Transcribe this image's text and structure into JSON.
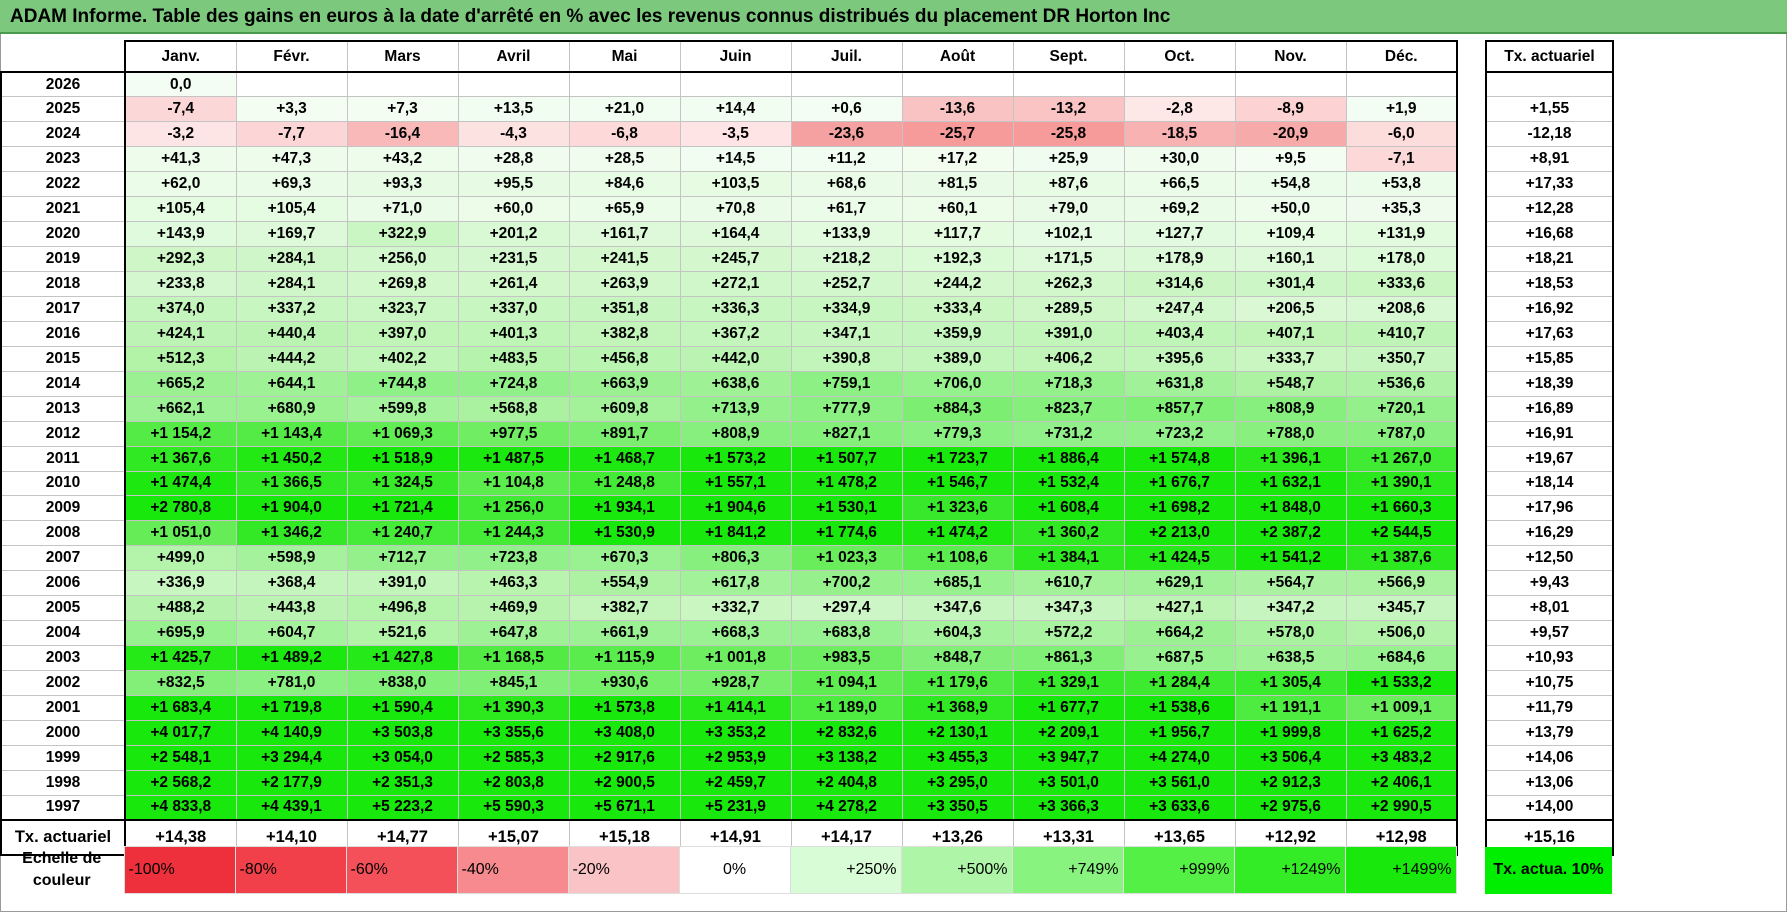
{
  "title": "ADAM Informe. Table des gains en euros à la date d'arrêté en % avec les revenus connus distribués du placement DR Horton Inc",
  "months": [
    "Janv.",
    "Févr.",
    "Mars",
    "Avril",
    "Mai",
    "Juin",
    "Juil.",
    "Août",
    "Sept.",
    "Oct.",
    "Nov.",
    "Déc."
  ],
  "right_header": "Tx. actuariel",
  "rows": [
    {
      "year": "2026",
      "values": [
        "0,0",
        "",
        "",
        "",
        "",
        "",
        "",
        "",
        "",
        "",
        "",
        ""
      ],
      "tx": ""
    },
    {
      "year": "2025",
      "values": [
        "-7,4",
        "+3,3",
        "+7,3",
        "+13,5",
        "+21,0",
        "+14,4",
        "+0,6",
        "-13,6",
        "-13,2",
        "-2,8",
        "-8,9",
        "+1,9"
      ],
      "tx": "+1,55"
    },
    {
      "year": "2024",
      "values": [
        "-3,2",
        "-7,7",
        "-16,4",
        "-4,3",
        "-6,8",
        "-3,5",
        "-23,6",
        "-25,7",
        "-25,8",
        "-18,5",
        "-20,9",
        "-6,0"
      ],
      "tx": "-12,18"
    },
    {
      "year": "2023",
      "values": [
        "+41,3",
        "+47,3",
        "+43,2",
        "+28,8",
        "+28,5",
        "+14,5",
        "+11,2",
        "+17,2",
        "+25,9",
        "+30,0",
        "+9,5",
        "-7,1"
      ],
      "tx": "+8,91"
    },
    {
      "year": "2022",
      "values": [
        "+62,0",
        "+69,3",
        "+93,3",
        "+95,5",
        "+84,6",
        "+103,5",
        "+68,6",
        "+81,5",
        "+87,6",
        "+66,5",
        "+54,8",
        "+53,8"
      ],
      "tx": "+17,33"
    },
    {
      "year": "2021",
      "values": [
        "+105,4",
        "+105,4",
        "+71,0",
        "+60,0",
        "+65,9",
        "+70,8",
        "+61,7",
        "+60,1",
        "+79,0",
        "+69,2",
        "+50,0",
        "+35,3"
      ],
      "tx": "+12,28"
    },
    {
      "year": "2020",
      "values": [
        "+143,9",
        "+169,7",
        "+322,9",
        "+201,2",
        "+161,7",
        "+164,4",
        "+133,9",
        "+117,7",
        "+102,1",
        "+127,7",
        "+109,4",
        "+131,9"
      ],
      "tx": "+16,68"
    },
    {
      "year": "2019",
      "values": [
        "+292,3",
        "+284,1",
        "+256,0",
        "+231,5",
        "+241,5",
        "+245,7",
        "+218,2",
        "+192,3",
        "+171,5",
        "+178,9",
        "+160,1",
        "+178,0"
      ],
      "tx": "+18,21"
    },
    {
      "year": "2018",
      "values": [
        "+233,8",
        "+284,1",
        "+269,8",
        "+261,4",
        "+263,9",
        "+272,1",
        "+252,7",
        "+244,2",
        "+262,3",
        "+314,6",
        "+301,4",
        "+333,6"
      ],
      "tx": "+18,53"
    },
    {
      "year": "2017",
      "values": [
        "+374,0",
        "+337,2",
        "+323,7",
        "+337,0",
        "+351,8",
        "+336,3",
        "+334,9",
        "+333,4",
        "+289,5",
        "+247,4",
        "+206,5",
        "+208,6"
      ],
      "tx": "+16,92"
    },
    {
      "year": "2016",
      "values": [
        "+424,1",
        "+440,4",
        "+397,0",
        "+401,3",
        "+382,8",
        "+367,2",
        "+347,1",
        "+359,9",
        "+391,0",
        "+403,4",
        "+407,1",
        "+410,7"
      ],
      "tx": "+17,63"
    },
    {
      "year": "2015",
      "values": [
        "+512,3",
        "+444,2",
        "+402,2",
        "+483,5",
        "+456,8",
        "+442,0",
        "+390,8",
        "+389,0",
        "+406,2",
        "+395,6",
        "+333,7",
        "+350,7"
      ],
      "tx": "+15,85"
    },
    {
      "year": "2014",
      "values": [
        "+665,2",
        "+644,1",
        "+744,8",
        "+724,8",
        "+663,9",
        "+638,6",
        "+759,1",
        "+706,0",
        "+718,3",
        "+631,8",
        "+548,7",
        "+536,6"
      ],
      "tx": "+18,39"
    },
    {
      "year": "2013",
      "values": [
        "+662,1",
        "+680,9",
        "+599,8",
        "+568,8",
        "+609,8",
        "+713,9",
        "+777,9",
        "+884,3",
        "+823,7",
        "+857,7",
        "+808,9",
        "+720,1"
      ],
      "tx": "+16,89"
    },
    {
      "year": "2012",
      "values": [
        "+1 154,2",
        "+1 143,4",
        "+1 069,3",
        "+977,5",
        "+891,7",
        "+808,9",
        "+827,1",
        "+779,3",
        "+731,2",
        "+723,2",
        "+788,0",
        "+787,0"
      ],
      "tx": "+16,91"
    },
    {
      "year": "2011",
      "values": [
        "+1 367,6",
        "+1 450,2",
        "+1 518,9",
        "+1 487,5",
        "+1 468,7",
        "+1 573,2",
        "+1 507,7",
        "+1 723,7",
        "+1 886,4",
        "+1 574,8",
        "+1 396,1",
        "+1 267,0"
      ],
      "tx": "+19,67"
    },
    {
      "year": "2010",
      "values": [
        "+1 474,4",
        "+1 366,5",
        "+1 324,5",
        "+1 104,8",
        "+1 248,8",
        "+1 557,1",
        "+1 478,2",
        "+1 546,7",
        "+1 532,4",
        "+1 676,7",
        "+1 632,1",
        "+1 390,1"
      ],
      "tx": "+18,14"
    },
    {
      "year": "2009",
      "values": [
        "+2 780,8",
        "+1 904,0",
        "+1 721,4",
        "+1 256,0",
        "+1 934,1",
        "+1 904,6",
        "+1 530,1",
        "+1 323,6",
        "+1 608,4",
        "+1 698,2",
        "+1 848,0",
        "+1 660,3"
      ],
      "tx": "+17,96"
    },
    {
      "year": "2008",
      "values": [
        "+1 051,0",
        "+1 346,2",
        "+1 240,7",
        "+1 244,3",
        "+1 530,9",
        "+1 841,2",
        "+1 774,6",
        "+1 474,2",
        "+1 360,2",
        "+2 213,0",
        "+2 387,2",
        "+2 544,5"
      ],
      "tx": "+16,29"
    },
    {
      "year": "2007",
      "values": [
        "+499,0",
        "+598,9",
        "+712,7",
        "+723,8",
        "+670,3",
        "+806,3",
        "+1 023,3",
        "+1 108,6",
        "+1 384,1",
        "+1 424,5",
        "+1 541,2",
        "+1 387,6"
      ],
      "tx": "+12,50"
    },
    {
      "year": "2006",
      "values": [
        "+336,9",
        "+368,4",
        "+391,0",
        "+463,3",
        "+554,9",
        "+617,8",
        "+700,2",
        "+685,1",
        "+610,7",
        "+629,1",
        "+564,7",
        "+566,9"
      ],
      "tx": "+9,43"
    },
    {
      "year": "2005",
      "values": [
        "+488,2",
        "+443,8",
        "+496,8",
        "+469,9",
        "+382,7",
        "+332,7",
        "+297,4",
        "+347,6",
        "+347,3",
        "+427,1",
        "+347,2",
        "+345,7"
      ],
      "tx": "+8,01"
    },
    {
      "year": "2004",
      "values": [
        "+695,9",
        "+604,7",
        "+521,6",
        "+647,8",
        "+661,9",
        "+668,3",
        "+683,8",
        "+604,3",
        "+572,2",
        "+664,2",
        "+578,0",
        "+506,0"
      ],
      "tx": "+9,57"
    },
    {
      "year": "2003",
      "values": [
        "+1 425,7",
        "+1 489,2",
        "+1 427,8",
        "+1 168,5",
        "+1 115,9",
        "+1 001,8",
        "+983,5",
        "+848,7",
        "+861,3",
        "+687,5",
        "+638,5",
        "+684,6"
      ],
      "tx": "+10,93"
    },
    {
      "year": "2002",
      "values": [
        "+832,5",
        "+781,0",
        "+838,0",
        "+845,1",
        "+930,6",
        "+928,7",
        "+1 094,1",
        "+1 179,6",
        "+1 329,1",
        "+1 284,4",
        "+1 305,4",
        "+1 533,2"
      ],
      "tx": "+10,75"
    },
    {
      "year": "2001",
      "values": [
        "+1 683,4",
        "+1 719,8",
        "+1 590,4",
        "+1 390,3",
        "+1 573,8",
        "+1 414,1",
        "+1 189,0",
        "+1 368,9",
        "+1 677,7",
        "+1 538,6",
        "+1 191,1",
        "+1 009,1"
      ],
      "tx": "+11,79"
    },
    {
      "year": "2000",
      "values": [
        "+4 017,7",
        "+4 140,9",
        "+3 503,8",
        "+3 355,6",
        "+3 408,0",
        "+3 353,2",
        "+2 832,6",
        "+2 130,1",
        "+2 209,1",
        "+1 956,7",
        "+1 999,8",
        "+1 625,2"
      ],
      "tx": "+13,79"
    },
    {
      "year": "1999",
      "values": [
        "+2 548,1",
        "+3 294,4",
        "+3 054,0",
        "+2 585,3",
        "+2 917,6",
        "+2 953,9",
        "+3 138,2",
        "+3 455,3",
        "+3 947,7",
        "+4 274,0",
        "+3 506,4",
        "+3 483,2"
      ],
      "tx": "+14,06"
    },
    {
      "year": "1998",
      "values": [
        "+2 568,2",
        "+2 177,9",
        "+2 351,3",
        "+2 803,8",
        "+2 900,5",
        "+2 459,7",
        "+2 404,8",
        "+3 295,0",
        "+3 501,0",
        "+3 561,0",
        "+2 912,3",
        "+2 406,1"
      ],
      "tx": "+13,06"
    },
    {
      "year": "1997",
      "values": [
        "+4 833,8",
        "+4 439,1",
        "+5 223,2",
        "+5 590,3",
        "+5 671,1",
        "+5 231,9",
        "+4 278,2",
        "+3 350,5",
        "+3 366,3",
        "+3 633,6",
        "+2 975,6",
        "+2 990,5"
      ],
      "tx": "+14,00"
    }
  ],
  "footer": {
    "label": "Tx. actuariel",
    "values": [
      "+14,38",
      "+14,10",
      "+14,77",
      "+15,07",
      "+15,18",
      "+14,91",
      "+14,17",
      "+13,26",
      "+13,31",
      "+13,65",
      "+12,92",
      "+12,98"
    ],
    "tx": "+15,16"
  },
  "legend": {
    "label": "Echelle de couleur",
    "items": [
      {
        "text": "-100%",
        "color": "#ee2f3c",
        "align": "left"
      },
      {
        "text": "-80%",
        "color": "#f2404a",
        "align": "left"
      },
      {
        "text": "-60%",
        "color": "#f3505a",
        "align": "left"
      },
      {
        "text": "-40%",
        "color": "#f68a8e",
        "align": "left"
      },
      {
        "text": "-20%",
        "color": "#fac3c5",
        "align": "left"
      },
      {
        "text": "0%",
        "color": "#ffffff",
        "align": "center"
      },
      {
        "text": "+250%",
        "color": "#d8fcd6",
        "align": "right"
      },
      {
        "text": "+500%",
        "color": "#aef5a8",
        "align": "right"
      },
      {
        "text": "+749%",
        "color": "#88f47f",
        "align": "right"
      },
      {
        "text": "+999%",
        "color": "#55f045",
        "align": "right"
      },
      {
        "text": "+1249%",
        "color": "#33ec26",
        "align": "right"
      },
      {
        "text": "+1499%",
        "color": "#19e80c",
        "align": "right"
      }
    ],
    "tx_label": "Tx. actua. 10%",
    "tx_color": "#00ee00"
  }
}
